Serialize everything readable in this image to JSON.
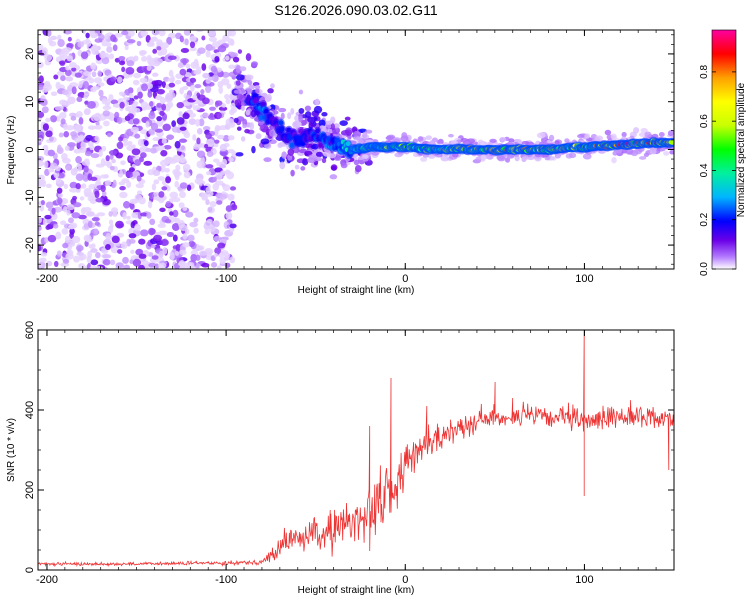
{
  "title": "S126.2026.090.03.02.G11",
  "chart_data": [
    {
      "type": "heatmap",
      "xlabel": "Height of straight line (km)",
      "ylabel": "Frequency (Hz)",
      "xlim": [
        -205,
        150
      ],
      "ylim": [
        -25,
        25
      ],
      "xticks": [
        -200,
        -100,
        0,
        100
      ],
      "xtick_labels": [
        "-200",
        "-100",
        "0",
        "100"
      ],
      "yticks": [
        20,
        10,
        0,
        -10,
        -20
      ],
      "ytick_labels": [
        "20",
        "10",
        "0",
        "-10",
        "-20"
      ],
      "colorbar": {
        "label": "Normalized spectral amplitude",
        "range": [
          0,
          0.97
        ],
        "ticks": [
          0.0,
          0.2,
          0.4,
          0.6,
          0.8
        ],
        "tick_labels": [
          "0.0",
          "0.2",
          "0.4",
          "0.6",
          "0.8"
        ],
        "colormap": [
          "#ffffff",
          "#b47cff",
          "#6a00e8",
          "#0000ff",
          "#00b4ff",
          "#00f0a0",
          "#00ff00",
          "#c8ff00",
          "#ffff00",
          "#ffa000",
          "#ff0000",
          "#ff00a0"
        ]
      },
      "ridge": {
        "description_free": true,
        "x": [
          -85,
          -80,
          -70,
          -60,
          -50,
          -40,
          -30,
          -20,
          -10,
          0,
          20,
          50,
          80,
          100,
          120,
          150
        ],
        "frequency": [
          10,
          8,
          4,
          2,
          3,
          1,
          0,
          0.5,
          0.5,
          0.5,
          0,
          0,
          0,
          0.5,
          1,
          1.5
        ],
        "amplitude": [
          0.3,
          0.35,
          0.3,
          0.3,
          0.3,
          0.35,
          0.45,
          0.55,
          0.6,
          0.65,
          0.7,
          0.8,
          0.8,
          0.75,
          0.92,
          0.85
        ]
      },
      "noise_region_x": [
        -205,
        -95
      ]
    },
    {
      "type": "line",
      "xlabel": "Height of straight line (km)",
      "ylabel": "SNR (10 * v/v)",
      "xlim": [
        -205,
        150
      ],
      "ylim": [
        0,
        600
      ],
      "xticks": [
        -200,
        -100,
        0,
        100
      ],
      "xtick_labels": [
        "-200",
        "-100",
        "0",
        "100"
      ],
      "yticks": [
        0,
        200,
        400,
        600
      ],
      "ytick_labels": [
        "0",
        "200",
        "400",
        "600"
      ],
      "series": [
        {
          "name": "SNR",
          "color": "#ee3333",
          "x": [
            -205,
            -150,
            -100,
            -80,
            -75,
            -65,
            -55,
            -45,
            -35,
            -25,
            -20,
            -15,
            -10,
            -5,
            0,
            10,
            20,
            30,
            40,
            50,
            60,
            70,
            80,
            90,
            100,
            110,
            120,
            130,
            140,
            150
          ],
          "y": [
            15,
            15,
            18,
            20,
            35,
            75,
            85,
            90,
            110,
            130,
            150,
            170,
            190,
            200,
            270,
            310,
            330,
            360,
            375,
            380,
            385,
            385,
            380,
            380,
            370,
            380,
            385,
            385,
            380,
            380
          ],
          "noise": [
            4,
            4,
            5,
            6,
            20,
            35,
            40,
            45,
            50,
            70,
            80,
            90,
            90,
            80,
            45,
            35,
            35,
            30,
            30,
            28,
            28,
            28,
            28,
            30,
            30,
            28,
            28,
            28,
            28,
            28
          ],
          "spikes": [
            {
              "x": -42,
              "y": 150
            },
            {
              "x": -20,
              "y": 360
            },
            {
              "x": -8,
              "y": 480
            },
            {
              "x": 12,
              "y": 410
            },
            {
              "x": 50,
              "y": 470
            },
            {
              "x": 60,
              "y": 430
            },
            {
              "x": 100,
              "y": 600
            },
            {
              "x": 100,
              "y": 185
            },
            {
              "x": 147,
              "y": 250
            }
          ]
        }
      ]
    }
  ]
}
